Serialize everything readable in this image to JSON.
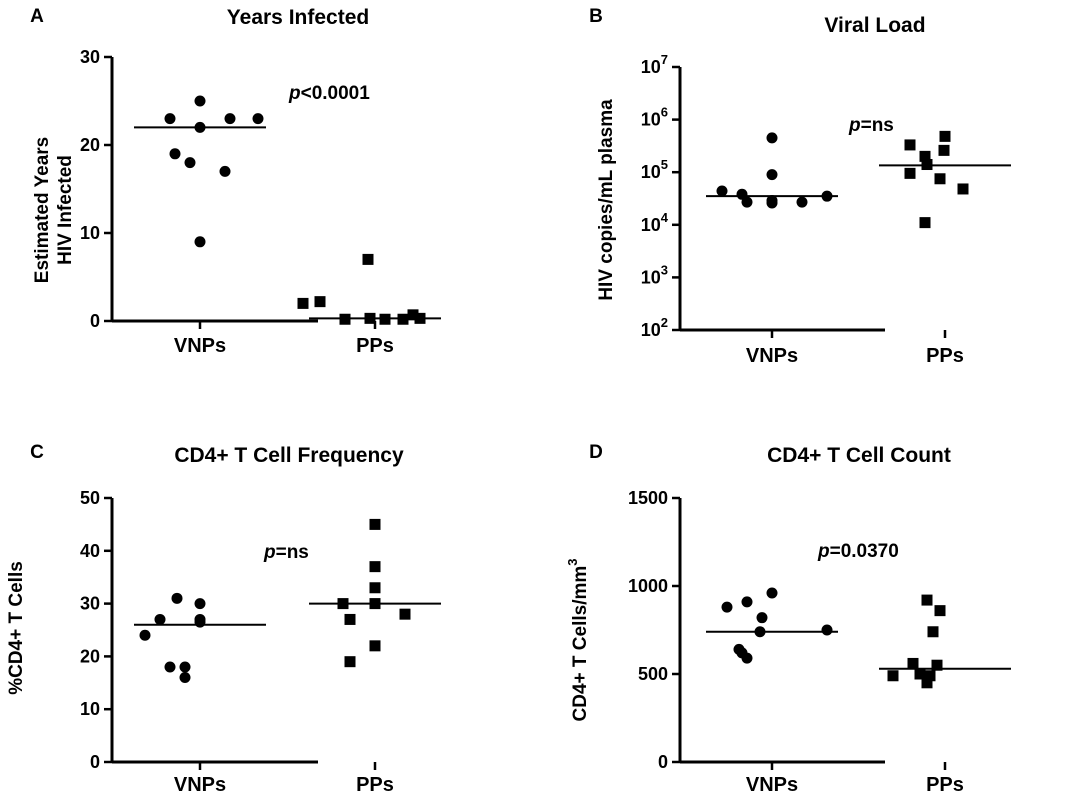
{
  "chart_data": [
    {
      "type": "scatter",
      "panel": "A",
      "title": "Years Infected",
      "ylabel": [
        "Estimated Years",
        "HIV Infected"
      ],
      "categories": [
        "VNPs",
        "PPs"
      ],
      "ylim": [
        0,
        30
      ],
      "yticks": [
        0,
        10,
        20,
        30
      ],
      "yscale": "linear",
      "annotation": {
        "italic": "p",
        "rest": "<0.0001"
      },
      "series": [
        {
          "category": "VNPs",
          "marker": "circle",
          "median": 22,
          "values": [
            25,
            23,
            22,
            23,
            23,
            19,
            18,
            17,
            9
          ]
        },
        {
          "category": "PPs",
          "marker": "square",
          "median": 0.3,
          "values": [
            7,
            2,
            2.2,
            0.2,
            0.3,
            0.2,
            0.2,
            0.3,
            0.7
          ]
        }
      ]
    },
    {
      "type": "scatter",
      "panel": "B",
      "title": "Viral Load",
      "ylabel": [
        "HIV copies/mL plasma"
      ],
      "categories": [
        "VNPs",
        "PPs"
      ],
      "ylim": [
        100,
        10000000
      ],
      "yticks": [
        100,
        1000,
        10000,
        100000,
        1000000,
        10000000
      ],
      "yticklabels": [
        [
          "10",
          "2"
        ],
        [
          "10",
          "3"
        ],
        [
          "10",
          "4"
        ],
        [
          "10",
          "5"
        ],
        [
          "10",
          "6"
        ],
        [
          "10",
          "7"
        ]
      ],
      "yscale": "log",
      "annotation": {
        "italic": "p",
        "rest": "=ns"
      },
      "series": [
        {
          "category": "VNPs",
          "marker": "circle",
          "median": 35000,
          "values": [
            450000,
            90000,
            44000,
            35000,
            27000,
            26000,
            27000,
            29000,
            38000
          ]
        },
        {
          "category": "PPs",
          "marker": "square",
          "median": 135000,
          "values": [
            480000,
            330000,
            260000,
            200000,
            140000,
            95000,
            75000,
            48000,
            11000
          ]
        }
      ]
    },
    {
      "type": "scatter",
      "panel": "C",
      "title": "CD4+ T Cell Frequency",
      "ylabel": [
        "%CD4+ T Cells"
      ],
      "categories": [
        "VNPs",
        "PPs"
      ],
      "ylim": [
        0,
        50
      ],
      "yticks": [
        0,
        10,
        20,
        30,
        40,
        50
      ],
      "yscale": "linear",
      "annotation": {
        "italic": "p",
        "rest": "=ns"
      },
      "series": [
        {
          "category": "VNPs",
          "marker": "circle",
          "median": 26,
          "values": [
            31,
            30,
            27,
            26.5,
            27,
            24,
            18,
            18,
            16
          ]
        },
        {
          "category": "PPs",
          "marker": "square",
          "median": 30,
          "values": [
            45,
            37,
            33,
            30,
            30,
            28,
            27,
            22,
            19
          ]
        }
      ]
    },
    {
      "type": "scatter",
      "panel": "D",
      "title": "CD4+ T Cell Count",
      "ylabel": [
        "CD4+ T Cells/mm",
        "3"
      ],
      "categories": [
        "VNPs",
        "PPs"
      ],
      "ylim": [
        0,
        1500
      ],
      "yticks": [
        0,
        500,
        1000,
        1500
      ],
      "yscale": "linear",
      "annotation": {
        "italic": "p",
        "rest": "=0.0370"
      },
      "series": [
        {
          "category": "VNPs",
          "marker": "circle",
          "median": 740,
          "values": [
            960,
            910,
            880,
            820,
            750,
            740,
            640,
            620,
            590
          ]
        },
        {
          "category": "PPs",
          "marker": "square",
          "median": 530,
          "values": [
            920,
            860,
            740,
            560,
            550,
            500,
            490,
            490,
            450
          ]
        }
      ]
    }
  ]
}
